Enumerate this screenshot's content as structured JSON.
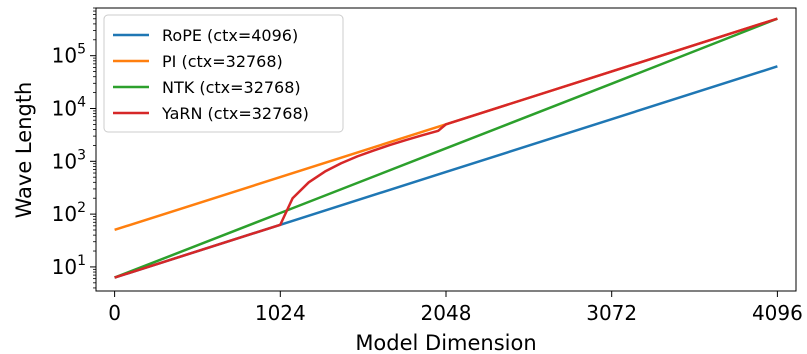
{
  "chart_data": {
    "type": "line",
    "title": "",
    "xlabel": "Model Dimension",
    "ylabel": "Wave Length",
    "xlim": [
      -115,
      4211
    ],
    "ylim": [
      3.5,
      800000
    ],
    "yscale": "log",
    "xticks": [
      0,
      1024,
      2048,
      3072,
      4096
    ],
    "yticks": [
      {
        "value": 10,
        "base": "10",
        "exp": "1"
      },
      {
        "value": 100,
        "base": "10",
        "exp": "2"
      },
      {
        "value": 1000,
        "base": "10",
        "exp": "3"
      },
      {
        "value": 10000,
        "base": "10",
        "exp": "4"
      },
      {
        "value": 100000,
        "base": "10",
        "exp": "5"
      }
    ],
    "grid": false,
    "legend_position": "top-left",
    "series": [
      {
        "name": "RoPE (ctx=4096)",
        "color": "#1f77b4",
        "x": [
          0,
          1024,
          2048,
          3072,
          4096
        ],
        "y": [
          6.28,
          62.8,
          628,
          6280,
          62800
        ]
      },
      {
        "name": "PI (ctx=32768)",
        "color": "#ff7f0e",
        "x": [
          0,
          1024,
          2048,
          3072,
          4096
        ],
        "y": [
          50.3,
          503,
          5030,
          50300,
          503000
        ]
      },
      {
        "name": "NTK (ctx=32768)",
        "color": "#2ca02c",
        "x": [
          0,
          1024,
          2048,
          3072,
          4096
        ],
        "y": [
          6.28,
          105,
          1760,
          29500,
          503000
        ]
      },
      {
        "name": "YaRN (ctx=32768)",
        "color": "#d62728",
        "x": [
          0,
          1024,
          1100,
          1200,
          1300,
          1400,
          1500,
          1600,
          1700,
          1800,
          1900,
          2000,
          2048,
          3072,
          4096
        ],
        "y": [
          6.28,
          62.8,
          200,
          400,
          640,
          920,
          1240,
          1600,
          2030,
          2530,
          3100,
          3780,
          5030,
          50300,
          503000
        ]
      }
    ]
  }
}
